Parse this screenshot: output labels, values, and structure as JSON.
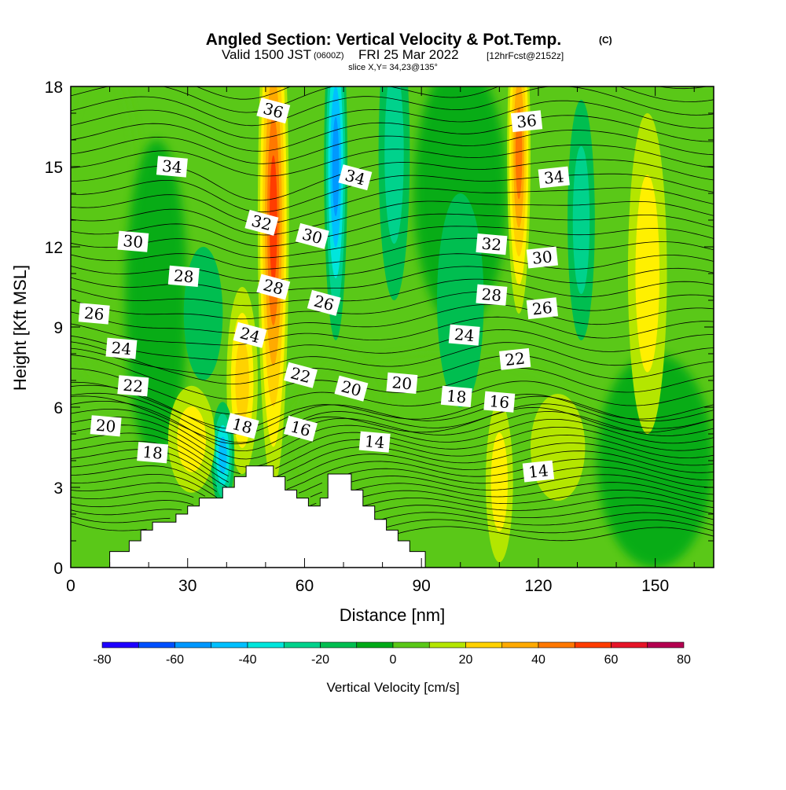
{
  "chart_data": {
    "type": "heatmap",
    "title": "Angled Section: Vertical Velocity & Pot.Temp.",
    "title_mark": "(C)",
    "subtitle": {
      "valid": "Valid 1500 JST",
      "zulu": "(0600Z)",
      "date": "FRI 25 Mar 2022",
      "forecast": "[12hrFcst@2152z]"
    },
    "slice_info": "slice X,Y= 34,23@135°",
    "xlabel": "Distance [nm]",
    "ylabel": "Height [Kft MSL]",
    "xlim": [
      0,
      165
    ],
    "ylim": [
      0,
      18
    ],
    "x_ticks": [
      0,
      30,
      60,
      90,
      120,
      150
    ],
    "y_ticks": [
      0,
      3,
      6,
      9,
      12,
      15,
      18
    ],
    "colorbar": {
      "label": "Vertical Velocity [cm/s]",
      "min": -80,
      "max": 80,
      "step": 10,
      "tick_labels": [
        -80,
        -60,
        -40,
        -20,
        0,
        20,
        40,
        60,
        80
      ],
      "colors": [
        "#1e00ff",
        "#0050ff",
        "#0098ff",
        "#00c0ff",
        "#00e6dc",
        "#00d28c",
        "#00be50",
        "#00aa18",
        "#5ac818",
        "#b4e600",
        "#fff000",
        "#ffd200",
        "#ffaa00",
        "#ff7800",
        "#ff3c00",
        "#e61428",
        "#b40050",
        "#8c0078",
        "#5a0096"
      ]
    },
    "vertical_velocity_cores": [
      {
        "x": 52,
        "y": 13.0,
        "w": 4,
        "h": 10.0,
        "value": 55
      },
      {
        "x": 44,
        "y": 7.0,
        "w": 4,
        "h": 3.5,
        "value": 25
      },
      {
        "x": 68,
        "y": 15.0,
        "w": 3,
        "h": 6.5,
        "value": -50
      },
      {
        "x": 39,
        "y": 4.2,
        "w": 3,
        "h": 2.0,
        "value": -40
      },
      {
        "x": 83,
        "y": 15.5,
        "w": 4,
        "h": 5.5,
        "value": -22
      },
      {
        "x": 115,
        "y": 15.5,
        "w": 3,
        "h": 6.0,
        "value": 45
      },
      {
        "x": 131,
        "y": 13.0,
        "w": 3.5,
        "h": 4.5,
        "value": -18
      },
      {
        "x": 110,
        "y": 3.2,
        "w": 3.5,
        "h": 3.0,
        "value": 15
      },
      {
        "x": 125,
        "y": 4.5,
        "w": 7,
        "h": 2.0,
        "value": 3
      },
      {
        "x": 31,
        "y": 4.8,
        "w": 6,
        "h": 2.0,
        "value": 18
      },
      {
        "x": 34,
        "y": 9.5,
        "w": 5,
        "h": 2.5,
        "value": -12
      },
      {
        "x": 148,
        "y": 11.0,
        "w": 5,
        "h": 6.0,
        "value": 18
      },
      {
        "x": 100,
        "y": 10.0,
        "w": 6,
        "h": 4.0,
        "value": -10
      }
    ],
    "potential_temperature_contours": [
      {
        "value": 14,
        "label": "14",
        "label_at": [
          [
            78,
            4.7
          ],
          [
            120,
            3.6
          ]
        ]
      },
      {
        "value": 16,
        "label": "16",
        "label_at": [
          [
            59,
            5.2
          ],
          [
            110,
            6.2
          ]
        ]
      },
      {
        "value": 18,
        "label": "18",
        "label_at": [
          [
            21,
            4.3
          ],
          [
            44,
            5.3
          ],
          [
            99,
            6.4
          ]
        ]
      },
      {
        "value": 20,
        "label": "20",
        "label_at": [
          [
            9,
            5.3
          ],
          [
            72,
            6.7
          ],
          [
            85,
            6.9
          ]
        ]
      },
      {
        "value": 22,
        "label": "22",
        "label_at": [
          [
            16,
            6.8
          ],
          [
            59,
            7.2
          ],
          [
            114,
            7.8
          ]
        ]
      },
      {
        "value": 24,
        "label": "24",
        "label_at": [
          [
            13,
            8.2
          ],
          [
            46,
            8.7
          ],
          [
            101,
            8.7
          ]
        ]
      },
      {
        "value": 26,
        "label": "26",
        "label_at": [
          [
            6,
            9.5
          ],
          [
            65,
            9.9
          ],
          [
            121,
            9.7
          ]
        ]
      },
      {
        "value": 28,
        "label": "28",
        "label_at": [
          [
            29,
            10.9
          ],
          [
            52,
            10.5
          ],
          [
            108,
            10.2
          ]
        ]
      },
      {
        "value": 30,
        "label": "30",
        "label_at": [
          [
            16,
            12.2
          ],
          [
            62,
            12.4
          ],
          [
            121,
            11.6
          ]
        ]
      },
      {
        "value": 32,
        "label": "32",
        "label_at": [
          [
            49,
            12.9
          ],
          [
            108,
            12.1
          ]
        ]
      },
      {
        "value": 34,
        "label": "34",
        "label_at": [
          [
            26,
            15.0
          ],
          [
            73,
            14.6
          ],
          [
            124,
            14.6
          ]
        ]
      },
      {
        "value": 36,
        "label": "36",
        "label_at": [
          [
            52,
            17.1
          ],
          [
            117,
            16.7
          ]
        ]
      }
    ]
  }
}
